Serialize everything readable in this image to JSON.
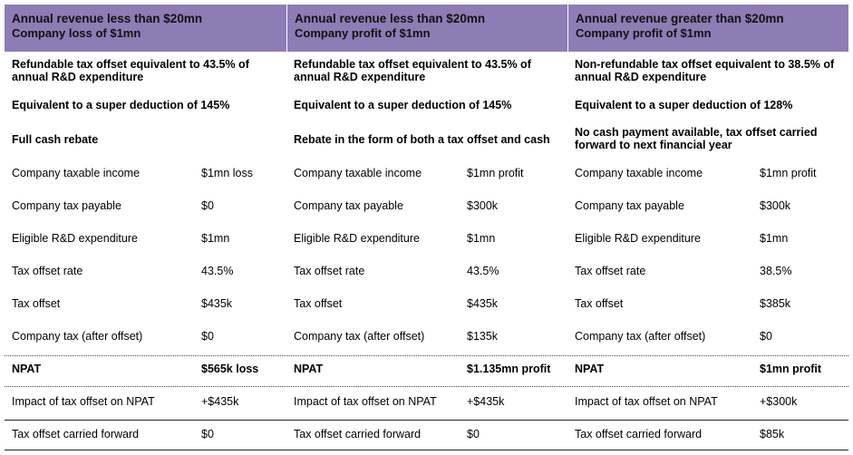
{
  "columns": [
    {
      "header": [
        "Annual revenue less than $20mn",
        "Company loss of $1mn"
      ],
      "intro": [
        "Refundable tax offset equivalent to 43.5% of annual R&D expenditure",
        "Equivalent to a super deduction of 145%",
        "Full cash rebate"
      ],
      "rows": [
        {
          "label": "Company taxable income",
          "value": "$1mn loss"
        },
        {
          "label": "Company tax payable",
          "value": "$0"
        },
        {
          "label": "Eligible R&D expenditure",
          "value": "$1mn"
        },
        {
          "label": "Tax offset rate",
          "value": "43.5%"
        },
        {
          "label": "Tax offset",
          "value": "$435k"
        },
        {
          "label": "Company tax (after offset)",
          "value": "$0"
        },
        {
          "label": "NPAT",
          "value": "$565k loss"
        },
        {
          "label": "Impact of tax offset on NPAT",
          "value": "+$435k"
        },
        {
          "label": "Tax offset carried forward",
          "value": "$0"
        }
      ]
    },
    {
      "header": [
        "Annual revenue  less than $20mn",
        "Company profit of $1mn"
      ],
      "intro": [
        "Refundable tax offset equivalent to 43.5% of annual R&D expenditure",
        "Equivalent to a super deduction of 145%",
        "Rebate in the form of both a tax offset and cash"
      ],
      "rows": [
        {
          "label": "Company taxable income",
          "value": "$1mn profit"
        },
        {
          "label": "Company tax payable",
          "value": "$300k"
        },
        {
          "label": "Eligible R&D expenditure",
          "value": "$1mn"
        },
        {
          "label": "Tax offset rate",
          "value": "43.5%"
        },
        {
          "label": "Tax offset",
          "value": "$435k"
        },
        {
          "label": "Company tax (after offset)",
          "value": "$135k"
        },
        {
          "label": "NPAT",
          "value": "$1.135mn profit"
        },
        {
          "label": "Impact of tax offset on NPAT",
          "value": "+$435k"
        },
        {
          "label": "Tax offset carried forward",
          "value": "$0"
        }
      ]
    },
    {
      "header": [
        "Annual revenue greater than $20mn",
        "Company profit of $1mn"
      ],
      "intro": [
        "Non-refundable tax offset equivalent to 38.5% of annual R&D expenditure",
        "Equivalent to a super deduction of 128%",
        "No cash payment available, tax offset carried forward to next financial year"
      ],
      "rows": [
        {
          "label": "Company taxable income",
          "value": "$1mn profit"
        },
        {
          "label": "Company tax payable",
          "value": "$300k"
        },
        {
          "label": "Eligible R&D expenditure",
          "value": "$1mn"
        },
        {
          "label": "Tax offset rate",
          "value": "38.5%"
        },
        {
          "label": "Tax offset",
          "value": "$385k"
        },
        {
          "label": "Company tax (after offset)",
          "value": "$0"
        },
        {
          "label": "NPAT",
          "value": "$1mn profit"
        },
        {
          "label": "Impact of tax offset on NPAT",
          "value": "+$300k"
        },
        {
          "label": "Tax offset carried forward",
          "value": "$85k"
        }
      ]
    }
  ],
  "colors": {
    "header_bg": "#8e7cb5"
  }
}
